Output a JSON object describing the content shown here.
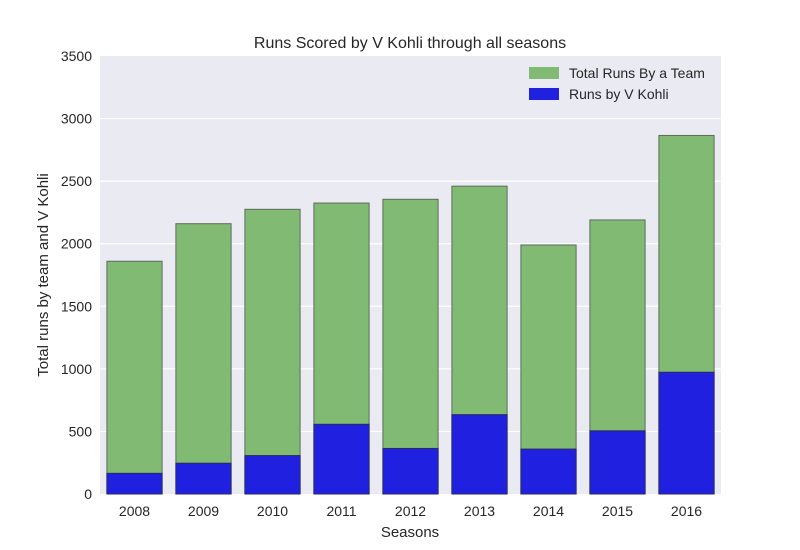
{
  "chart_data": {
    "type": "bar",
    "title": "Runs Scored by V Kohli through all seasons",
    "xlabel": "Seasons",
    "ylabel": "Total runs by team and V Kohli",
    "categories": [
      "2008",
      "2009",
      "2010",
      "2011",
      "2012",
      "2013",
      "2014",
      "2015",
      "2016"
    ],
    "yticks": [
      "0",
      "500",
      "1000",
      "1500",
      "2000",
      "2500",
      "3000",
      "3500"
    ],
    "ylim": [
      0,
      3500
    ],
    "grid": true,
    "legend_position": "top-right",
    "series": [
      {
        "name": "Total Runs By a Team",
        "color": "#80ba73",
        "values": [
          1860,
          2160,
          2275,
          2325,
          2355,
          2460,
          1990,
          2190,
          2865
        ]
      },
      {
        "name": "Runs by V Kohli",
        "color": "#2020e0",
        "values": [
          165,
          246,
          307,
          557,
          364,
          634,
          359,
          505,
          973
        ]
      }
    ]
  }
}
